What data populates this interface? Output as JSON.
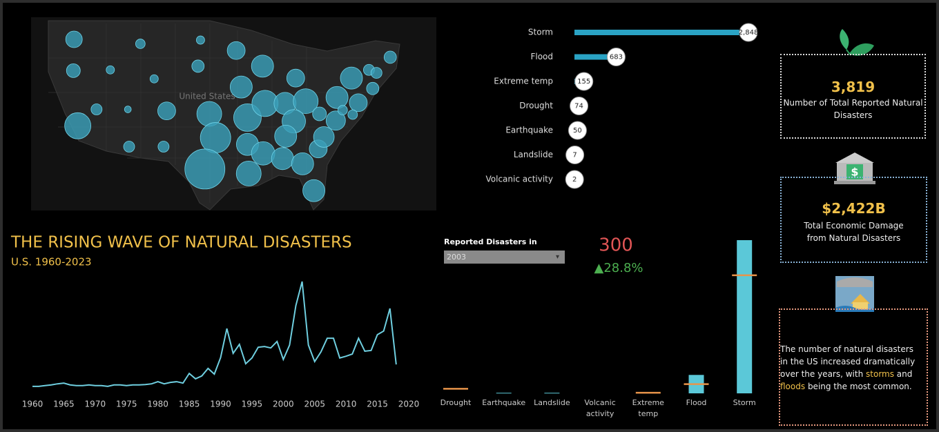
{
  "chart_data": [
    {
      "type": "bubble_map",
      "label": "United States",
      "color": "#3a9fb8",
      "points": [
        {
          "lon": -119.9,
          "lat": 46.5,
          "value": 36
        },
        {
          "lon": -120.0,
          "lat": 42.3,
          "value": 25
        },
        {
          "lon": -119.3,
          "lat": 34.9,
          "value": 90
        },
        {
          "lon": -114.1,
          "lat": 42.4,
          "value": 9
        },
        {
          "lon": -109.3,
          "lat": 45.9,
          "value": 12
        },
        {
          "lon": -107.1,
          "lat": 41.2,
          "value": 9
        },
        {
          "lon": -111.3,
          "lat": 37.1,
          "value": 6
        },
        {
          "lon": -116.3,
          "lat": 37.1,
          "value": 16
        },
        {
          "lon": -111.1,
          "lat": 32.1,
          "value": 16
        },
        {
          "lon": -105.6,
          "lat": 32.1,
          "value": 16
        },
        {
          "lon": -105.1,
          "lat": 36.9,
          "value": 42
        },
        {
          "lon": -99.7,
          "lat": 46.4,
          "value": 9
        },
        {
          "lon": -100.1,
          "lat": 42.9,
          "value": 20
        },
        {
          "lon": -94.0,
          "lat": 45.0,
          "value": 42
        },
        {
          "lon": -98.3,
          "lat": 36.5,
          "value": 81
        },
        {
          "lon": -97.3,
          "lat": 33.3,
          "value": 121
        },
        {
          "lon": -99.0,
          "lat": 29.1,
          "value": 210
        },
        {
          "lon": -93.2,
          "lat": 40.1,
          "value": 64
        },
        {
          "lon": -89.8,
          "lat": 42.9,
          "value": 64
        },
        {
          "lon": -92.2,
          "lat": 36.0,
          "value": 100
        },
        {
          "lon": -92.2,
          "lat": 32.4,
          "value": 64
        },
        {
          "lon": -92.0,
          "lat": 28.5,
          "value": 81
        },
        {
          "lon": -89.4,
          "lat": 37.9,
          "value": 90
        },
        {
          "lon": -89.7,
          "lat": 31.2,
          "value": 72
        },
        {
          "lon": -86.6,
          "lat": 30.5,
          "value": 64
        },
        {
          "lon": -84.5,
          "lat": 41.3,
          "value": 42
        },
        {
          "lon": -86.2,
          "lat": 37.9,
          "value": 64
        },
        {
          "lon": -82.9,
          "lat": 38.2,
          "value": 81
        },
        {
          "lon": -84.8,
          "lat": 35.5,
          "value": 72
        },
        {
          "lon": -86.1,
          "lat": 33.5,
          "value": 64
        },
        {
          "lon": -83.4,
          "lat": 29.8,
          "value": 64
        },
        {
          "lon": -81.6,
          "lat": 26.2,
          "value": 64
        },
        {
          "lon": -80.9,
          "lat": 31.8,
          "value": 42
        },
        {
          "lon": -80.0,
          "lat": 33.4,
          "value": 56
        },
        {
          "lon": -78.1,
          "lat": 35.6,
          "value": 49
        },
        {
          "lon": -80.7,
          "lat": 36.5,
          "value": 25
        },
        {
          "lon": -77.9,
          "lat": 38.7,
          "value": 64
        },
        {
          "lon": -75.6,
          "lat": 41.3,
          "value": 64
        },
        {
          "lon": -74.5,
          "lat": 38.0,
          "value": 42
        },
        {
          "lon": -77.0,
          "lat": 37.0,
          "value": 12
        },
        {
          "lon": -75.4,
          "lat": 36.4,
          "value": 12
        },
        {
          "lon": -72.8,
          "lat": 42.4,
          "value": 16
        },
        {
          "lon": -71.6,
          "lat": 42.0,
          "value": 16
        },
        {
          "lon": -72.2,
          "lat": 39.9,
          "value": 20
        },
        {
          "lon": -69.4,
          "lat": 44.1,
          "value": 20
        }
      ]
    },
    {
      "type": "hbar",
      "color": "#2aa3c4",
      "categories": [
        "Storm",
        "Flood",
        "Extreme temp",
        "Drought",
        "Earthquake",
        "Landslide",
        "Volcanic activity"
      ],
      "values": [
        2848,
        683,
        155,
        74,
        50,
        7,
        2
      ],
      "value_labels": [
        "2,848",
        "683",
        "155",
        "74",
        "50",
        "7",
        "2"
      ],
      "xlim": [
        0,
        2848
      ]
    },
    {
      "type": "line",
      "title": "THE RISING WAVE OF NATURAL DISASTERS",
      "subtitle": "U.S. 1960-2023",
      "color": "#6fcfe0",
      "x": [
        1960,
        1961,
        1962,
        1963,
        1964,
        1965,
        1966,
        1967,
        1968,
        1969,
        1970,
        1971,
        1972,
        1973,
        1974,
        1975,
        1976,
        1977,
        1978,
        1979,
        1980,
        1981,
        1982,
        1983,
        1984,
        1985,
        1986,
        1987,
        1988,
        1989,
        1990,
        1991,
        1992,
        1993,
        1994,
        1995,
        1996,
        1997,
        1998,
        1999,
        2000,
        2001,
        2002,
        2003,
        2004,
        2005,
        2006,
        2007,
        2008,
        2009,
        2010,
        2011,
        2012,
        2013,
        2014,
        2015,
        2016,
        2017,
        2018
      ],
      "values": [
        8,
        8,
        10,
        12,
        15,
        17,
        12,
        10,
        10,
        12,
        10,
        10,
        8,
        12,
        12,
        10,
        12,
        12,
        13,
        15,
        21,
        15,
        19,
        21,
        17,
        44,
        29,
        37,
        58,
        42,
        88,
        169,
        100,
        125,
        71,
        87,
        117,
        119,
        115,
        133,
        83,
        123,
        233,
        300,
        123,
        77,
        104,
        142,
        142,
        87,
        92,
        98,
        142,
        106,
        108,
        152,
        162,
        225,
        69
      ],
      "xlim": [
        1960,
        2020
      ],
      "xticks": [
        1960,
        1965,
        1970,
        1975,
        1980,
        1985,
        1990,
        1995,
        2000,
        2005,
        2010,
        2015,
        2020
      ],
      "ylim": [
        0,
        300
      ]
    },
    {
      "type": "bar",
      "color": "#5bc8d8",
      "reference_color": "#e8944a",
      "categories": [
        "Drought",
        "Earthquake",
        "Landslide",
        "Volcanic activity",
        "Extreme temp",
        "Flood",
        "Storm"
      ],
      "values": [
        0,
        1,
        1,
        0,
        0,
        32,
        266
      ],
      "reference_values": [
        8,
        null,
        null,
        null,
        1,
        16,
        205
      ],
      "ylim": [
        0,
        266
      ]
    }
  ],
  "controls": {
    "label": "Reported Disasters in",
    "selected": "2003"
  },
  "kpis": {
    "year_total": 300,
    "change": "▲28.8%",
    "total": "3,819",
    "total_label": "Number of Total Reported Natural Disasters",
    "damage": "$2,422B",
    "damage_label": "Total Economic Damage from Natural Disasters",
    "note": [
      {
        "text": "The number of natural disasters in the US increased dramatically over the years, with "
      },
      {
        "text": "storms",
        "highlight": true
      },
      {
        "text": " and "
      },
      {
        "text": "floods",
        "highlight": true
      },
      {
        "text": " being the most common."
      }
    ]
  }
}
